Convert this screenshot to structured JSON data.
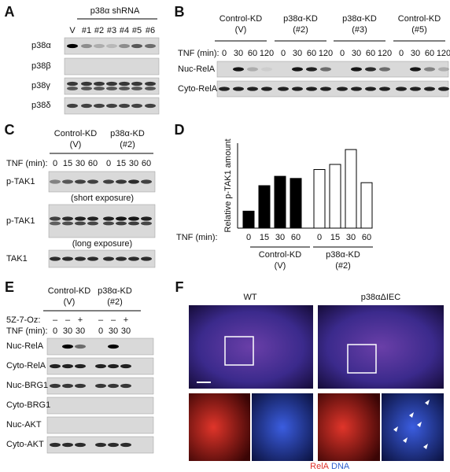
{
  "panels": {
    "a": {
      "label": "A",
      "header": "p38α shRNA",
      "lanes": [
        "V",
        "#1",
        "#2",
        "#3",
        "#4",
        "#5",
        "#6"
      ],
      "rows": [
        "p38α",
        "p38β",
        "p38γ",
        "p38δ"
      ]
    },
    "b": {
      "label": "B",
      "groups": [
        {
          "name": "Control-KD",
          "sub": "(V)"
        },
        {
          "name": "p38α-KD",
          "sub": "(#2)"
        },
        {
          "name": "p38α-KD",
          "sub": "(#3)"
        },
        {
          "name": "Control-KD",
          "sub": "(#5)"
        }
      ],
      "tnf_label": "TNF (min):",
      "times": [
        "0",
        "30",
        "60",
        "120"
      ],
      "rows": [
        "Nuc-RelA",
        "Cyto-RelA"
      ]
    },
    "c": {
      "label": "C",
      "groups": [
        {
          "name": "Control-KD",
          "sub": "(V)"
        },
        {
          "name": "p38α-KD",
          "sub": "(#2)"
        }
      ],
      "tnf_label": "TNF (min):",
      "times": [
        "0",
        "15",
        "30",
        "60"
      ],
      "rows": [
        {
          "name": "p-TAK1",
          "note": "(short exposure)"
        },
        {
          "name": "p-TAK1",
          "note": "(long exposure)"
        },
        {
          "name": "TAK1"
        }
      ]
    },
    "d": {
      "label": "D",
      "chart_data": {
        "type": "bar",
        "y_label": "Relative p-TAK1 amount",
        "tnf_label": "TNF (min):",
        "categories": [
          "0",
          "15",
          "30",
          "60",
          "0",
          "15",
          "30",
          "60"
        ],
        "values": [
          0.4,
          1.0,
          1.22,
          1.17,
          1.38,
          1.5,
          1.85,
          1.07
        ],
        "colors": [
          "#000000",
          "#000000",
          "#000000",
          "#000000",
          "#ffffff",
          "#ffffff",
          "#ffffff",
          "#ffffff"
        ],
        "ylim": [
          0,
          2
        ],
        "groups": [
          {
            "name": "Control-KD",
            "sub": "(V)"
          },
          {
            "name": "p38α-KD",
            "sub": "(#2)"
          }
        ]
      }
    },
    "e": {
      "label": "E",
      "groups": [
        {
          "name": "Control-KD",
          "sub": "(V)"
        },
        {
          "name": "p38α-KD",
          "sub": "(#2)"
        }
      ],
      "treatment_label": "5Z-7-Oz:",
      "treatment": [
        "–",
        "–",
        "+",
        "–",
        "–",
        "+"
      ],
      "tnf_label": "TNF (min):",
      "times": [
        "0",
        "30",
        "30",
        "0",
        "30",
        "30"
      ],
      "rows": [
        "Nuc-RelA",
        "Cyto-RelA",
        "Nuc-BRG1",
        "Cyto-BRG1",
        "Nuc-AKT",
        "Cyto-AKT"
      ]
    },
    "f": {
      "label": "F",
      "conditions": [
        "WT",
        "p38αΔIEC"
      ],
      "legend": [
        "RelA",
        "DNA"
      ]
    }
  }
}
